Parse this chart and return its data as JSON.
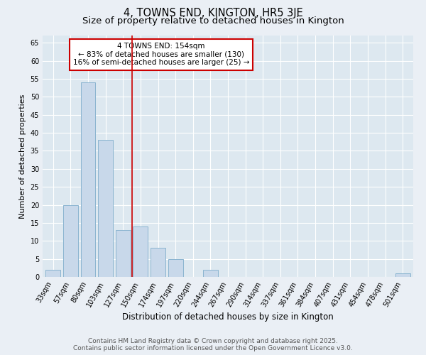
{
  "title": "4, TOWNS END, KINGTON, HR5 3JE",
  "subtitle": "Size of property relative to detached houses in Kington",
  "xlabel": "Distribution of detached houses by size in Kington",
  "ylabel": "Number of detached properties",
  "categories": [
    "33sqm",
    "57sqm",
    "80sqm",
    "103sqm",
    "127sqm",
    "150sqm",
    "174sqm",
    "197sqm",
    "220sqm",
    "244sqm",
    "267sqm",
    "290sqm",
    "314sqm",
    "337sqm",
    "361sqm",
    "384sqm",
    "407sqm",
    "431sqm",
    "454sqm",
    "478sqm",
    "501sqm"
  ],
  "values": [
    2,
    20,
    54,
    38,
    13,
    14,
    8,
    5,
    0,
    2,
    0,
    0,
    0,
    0,
    0,
    0,
    0,
    0,
    0,
    0,
    1
  ],
  "bar_color": "#c8d8ea",
  "bar_edge_color": "#8ab4d0",
  "vline_x": 4.5,
  "vline_color": "#cc0000",
  "annotation_text": "4 TOWNS END: 154sqm\n← 83% of detached houses are smaller (130)\n16% of semi-detached houses are larger (25) →",
  "annotation_box_color": "#ffffff",
  "annotation_box_edge_color": "#cc0000",
  "ylim": [
    0,
    67
  ],
  "yticks": [
    0,
    5,
    10,
    15,
    20,
    25,
    30,
    35,
    40,
    45,
    50,
    55,
    60,
    65
  ],
  "background_color": "#eaeff5",
  "plot_bg_color": "#dde8f0",
  "footer_line1": "Contains HM Land Registry data © Crown copyright and database right 2025.",
  "footer_line2": "Contains public sector information licensed under the Open Government Licence v3.0.",
  "title_fontsize": 10.5,
  "subtitle_fontsize": 9.5,
  "xlabel_fontsize": 8.5,
  "ylabel_fontsize": 8,
  "tick_fontsize": 7,
  "annotation_fontsize": 7.5,
  "footer_fontsize": 6.5
}
